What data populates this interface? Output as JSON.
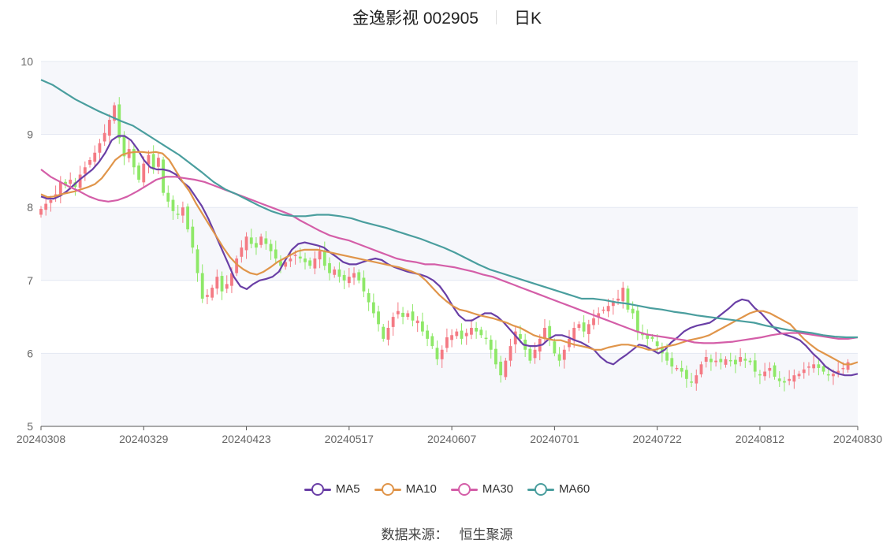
{
  "header": {
    "title": "金逸影视 002905",
    "period": "日K"
  },
  "source": {
    "label": "数据来源：",
    "name": "恒生聚源"
  },
  "colors": {
    "up": "#f47a84",
    "down": "#8ee868",
    "grid": "#e4e8f2",
    "band": "#f6f7fb",
    "MA5": "#6a3fa6",
    "MA10": "#e0954a",
    "MA30": "#d45ea8",
    "MA60": "#4a9e9e"
  },
  "chart_data": {
    "type": "candlestick",
    "title": "金逸影视 002905 日K",
    "xlabel": "",
    "ylabel": "",
    "ylim": [
      5,
      10
    ],
    "yticks": [
      "5",
      "6",
      "7",
      "8",
      "9",
      "10"
    ],
    "xticks": [
      "20240308",
      "20240329",
      "20240423",
      "20240517",
      "20240607",
      "20240701",
      "20240722",
      "20240812",
      "20240830"
    ],
    "x_tick_index": [
      0,
      21,
      42,
      63,
      84,
      105,
      126,
      147,
      167
    ],
    "count": 168,
    "legend": [
      "MA5",
      "MA10",
      "MA30",
      "MA60"
    ],
    "legend_position": "bottom",
    "close": [
      7.98,
      8.05,
      8.1,
      8.18,
      8.35,
      8.3,
      8.38,
      8.28,
      8.45,
      8.55,
      8.65,
      8.75,
      8.88,
      9.02,
      9.2,
      9.4,
      8.95,
      8.7,
      8.8,
      8.55,
      8.38,
      8.6,
      8.72,
      8.52,
      8.68,
      8.2,
      8.08,
      7.95,
      7.9,
      8.0,
      7.7,
      7.45,
      7.1,
      6.75,
      6.8,
      6.9,
      7.05,
      6.85,
      6.95,
      7.1,
      7.3,
      7.45,
      7.6,
      7.5,
      7.45,
      7.6,
      7.5,
      7.4,
      7.3,
      7.2,
      7.25,
      7.3,
      7.35,
      7.3,
      7.25,
      7.2,
      7.3,
      7.4,
      7.2,
      7.1,
      7.15,
      7.05,
      7.0,
      7.05,
      7.1,
      7.0,
      6.85,
      6.7,
      6.55,
      6.4,
      6.2,
      6.35,
      6.5,
      6.58,
      6.5,
      6.55,
      6.45,
      6.45,
      6.3,
      6.2,
      6.1,
      5.92,
      6.05,
      6.22,
      6.25,
      6.3,
      6.2,
      6.28,
      6.35,
      6.3,
      6.25,
      6.2,
      6.05,
      5.85,
      5.7,
      5.9,
      6.1,
      6.3,
      6.2,
      6.05,
      5.9,
      6.05,
      6.2,
      6.35,
      6.2,
      6.0,
      5.9,
      6.05,
      6.2,
      6.35,
      6.4,
      6.3,
      6.4,
      6.48,
      6.55,
      6.6,
      6.65,
      6.7,
      6.75,
      6.9,
      6.6,
      6.55,
      6.3,
      6.25,
      6.2,
      6.2,
      6.1,
      6.0,
      5.9,
      5.82,
      5.8,
      5.75,
      5.65,
      5.6,
      5.7,
      5.85,
      5.95,
      5.88,
      5.9,
      5.88,
      5.92,
      5.9,
      5.85,
      5.95,
      5.9,
      5.88,
      5.75,
      5.7,
      5.75,
      5.8,
      5.68,
      5.62,
      5.6,
      5.65,
      5.7,
      5.72,
      5.78,
      5.82,
      5.85,
      5.8,
      5.75,
      5.7,
      5.72,
      5.76,
      5.8,
      5.88
    ],
    "series": [
      {
        "name": "MA5",
        "values": [
          8.15,
          8.12,
          8.12,
          8.16,
          8.22,
          8.3,
          8.38,
          8.45,
          8.52,
          8.62,
          8.75,
          8.92,
          8.98,
          8.98,
          8.92,
          8.8,
          8.65,
          8.55,
          8.52,
          8.52,
          8.5,
          8.45,
          8.35,
          8.28,
          8.15,
          8.02,
          7.85,
          7.65,
          7.45,
          7.25,
          7.05,
          6.92,
          6.88,
          6.95,
          7.0,
          7.02,
          7.05,
          7.12,
          7.28,
          7.42,
          7.5,
          7.52,
          7.5,
          7.48,
          7.45,
          7.38,
          7.32,
          7.25,
          7.22,
          7.22,
          7.25,
          7.28,
          7.3,
          7.28,
          7.22,
          7.18,
          7.15,
          7.12,
          7.1,
          7.08,
          7.05,
          7.0,
          6.92,
          6.8,
          6.65,
          6.52,
          6.45,
          6.45,
          6.5,
          6.55,
          6.55,
          6.5,
          6.42,
          6.32,
          6.22,
          6.12,
          6.1,
          6.1,
          6.12,
          6.2,
          6.25,
          6.25,
          6.22,
          6.18,
          6.15,
          6.1,
          6.05,
          5.95,
          5.88,
          5.85,
          5.92,
          5.98,
          6.05,
          6.12,
          6.1,
          6.05,
          6.0,
          6.05,
          6.15,
          6.22,
          6.3,
          6.35,
          6.38,
          6.4,
          6.42,
          6.48,
          6.55,
          6.62,
          6.7,
          6.74,
          6.72,
          6.62,
          6.55,
          6.45,
          6.35,
          6.28,
          6.25,
          6.22,
          6.18,
          6.1,
          6.0,
          5.92,
          5.82,
          5.76,
          5.72,
          5.7,
          5.7,
          5.72
        ]
      },
      {
        "name": "MA10",
        "values": [
          8.18,
          8.14,
          8.15,
          8.18,
          8.2,
          8.22,
          8.25,
          8.28,
          8.32,
          8.4,
          8.52,
          8.65,
          8.72,
          8.75,
          8.76,
          8.76,
          8.75,
          8.76,
          8.74,
          8.65,
          8.5,
          8.35,
          8.22,
          8.05,
          7.9,
          7.75,
          7.6,
          7.45,
          7.32,
          7.22,
          7.15,
          7.1,
          7.08,
          7.12,
          7.18,
          7.25,
          7.3,
          7.35,
          7.4,
          7.42,
          7.42,
          7.42,
          7.4,
          7.38,
          7.36,
          7.34,
          7.32,
          7.3,
          7.28,
          7.26,
          7.24,
          7.22,
          7.2,
          7.18,
          7.15,
          7.12,
          7.08,
          7.0,
          6.9,
          6.8,
          6.72,
          6.65,
          6.6,
          6.58,
          6.55,
          6.52,
          6.5,
          6.48,
          6.45,
          6.42,
          6.38,
          6.35,
          6.3,
          6.25,
          6.22,
          6.2,
          6.18,
          6.18,
          6.15,
          6.12,
          6.1,
          6.08,
          6.05,
          6.05,
          6.08,
          6.1,
          6.12,
          6.12,
          6.1,
          6.08,
          6.05,
          6.05,
          6.08,
          6.1,
          6.12,
          6.15,
          6.18,
          6.2,
          6.22,
          6.25,
          6.3,
          6.35,
          6.4,
          6.45,
          6.5,
          6.55,
          6.58,
          6.58,
          6.55,
          6.5,
          6.45,
          6.4,
          6.3,
          6.2,
          6.12,
          6.05,
          6.0,
          5.95,
          5.9,
          5.85,
          5.85,
          5.88
        ]
      },
      {
        "name": "MA30",
        "values": [
          8.52,
          8.42,
          8.35,
          8.28,
          8.22,
          8.15,
          8.1,
          8.08,
          8.1,
          8.15,
          8.22,
          8.3,
          8.38,
          8.42,
          8.42,
          8.4,
          8.38,
          8.35,
          8.3,
          8.25,
          8.2,
          8.15,
          8.1,
          8.05,
          8.0,
          7.95,
          7.9,
          7.82,
          7.75,
          7.68,
          7.62,
          7.58,
          7.55,
          7.5,
          7.45,
          7.4,
          7.35,
          7.3,
          7.27,
          7.25,
          7.22,
          7.22,
          7.2,
          7.18,
          7.15,
          7.12,
          7.08,
          7.05,
          7.0,
          6.95,
          6.9,
          6.85,
          6.8,
          6.75,
          6.7,
          6.65,
          6.6,
          6.55,
          6.5,
          6.45,
          6.4,
          6.35,
          6.3,
          6.26,
          6.24,
          6.22,
          6.2,
          6.18,
          6.15,
          6.14,
          6.14,
          6.15,
          6.16,
          6.18,
          6.2,
          6.22,
          6.25,
          6.27,
          6.28,
          6.28,
          6.26,
          6.24,
          6.22,
          6.2,
          6.2,
          6.22
        ]
      },
      {
        "name": "MA60",
        "values": [
          9.75,
          9.68,
          9.58,
          9.48,
          9.4,
          9.32,
          9.25,
          9.18,
          9.12,
          9.02,
          8.92,
          8.82,
          8.72,
          8.6,
          8.48,
          8.35,
          8.25,
          8.18,
          8.1,
          8.02,
          7.95,
          7.9,
          7.88,
          7.88,
          7.9,
          7.9,
          7.88,
          7.85,
          7.8,
          7.76,
          7.72,
          7.67,
          7.62,
          7.57,
          7.51,
          7.45,
          7.38,
          7.3,
          7.22,
          7.15,
          7.1,
          7.05,
          7.0,
          6.95,
          6.9,
          6.85,
          6.8,
          6.75,
          6.75,
          6.73,
          6.7,
          6.68,
          6.65,
          6.62,
          6.6,
          6.57,
          6.55,
          6.52,
          6.5,
          6.48,
          6.46,
          6.44,
          6.42,
          6.38,
          6.35,
          6.32,
          6.3,
          6.28,
          6.25,
          6.23,
          6.22,
          6.22
        ]
      }
    ]
  }
}
